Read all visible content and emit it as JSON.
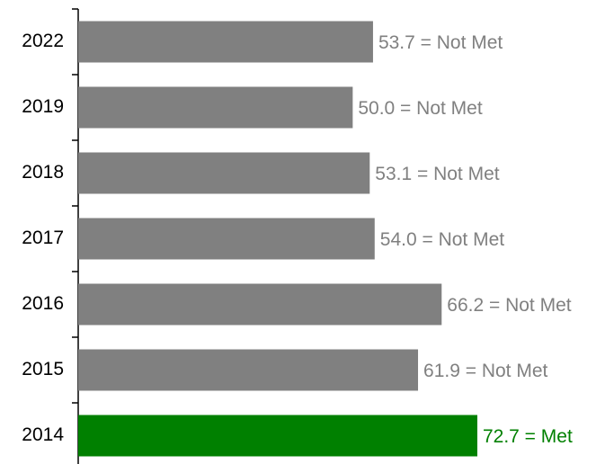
{
  "chart_data": {
    "type": "barh",
    "categories": [
      "2022",
      "2019",
      "2018",
      "2017",
      "2016",
      "2015",
      "2014"
    ],
    "values": [
      53.7,
      50.0,
      53.1,
      54.0,
      66.2,
      61.9,
      72.7
    ],
    "value_labels": [
      "53.7 = Not Met",
      "50.0 = Not Met",
      "53.1 = Not Met",
      "54.0 = Not Met",
      "66.2 = Not Met",
      "61.9 = Not Met",
      "72.7 = Met"
    ],
    "colors": [
      "#808080",
      "#808080",
      "#808080",
      "#808080",
      "#808080",
      "#808080",
      "#008000"
    ]
  }
}
